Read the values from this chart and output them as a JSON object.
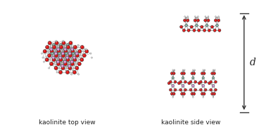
{
  "left_label": "kaolinite top view",
  "right_label": "kaolinite side view",
  "d_label": "d",
  "bg_color": "#ffffff",
  "label_fontsize": 6.5,
  "d_fontsize": 10,
  "fig_width": 3.78,
  "fig_height": 1.88,
  "atom_colors": {
    "red": "#dd1111",
    "pink": "#dd99dd",
    "teal": "#88bbaa",
    "white": "#e0e0e0",
    "gray": "#aaaaaa",
    "dark_gray": "#555555"
  }
}
